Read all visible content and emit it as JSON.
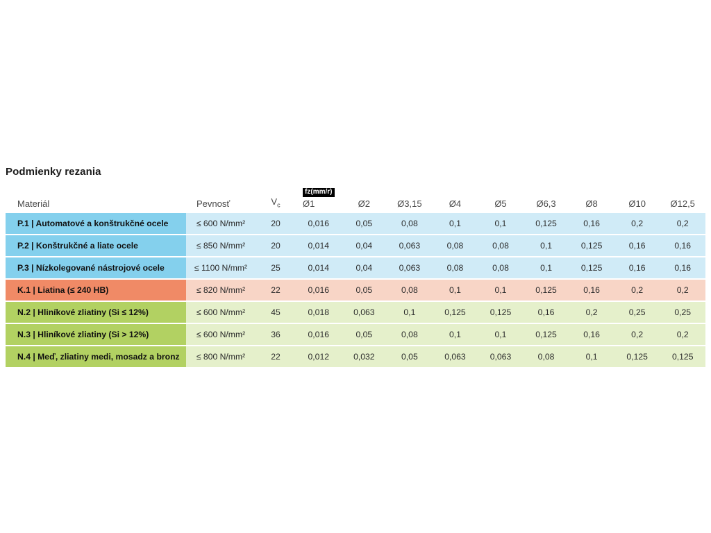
{
  "page": {
    "title": "Podmienky rezania"
  },
  "table": {
    "headers": {
      "material": "Materiál",
      "strength": "Pevnosť",
      "vc_main": "V",
      "vc_sub": "c",
      "fz_badge": "fz(mm/r)",
      "diameters": [
        "Ø1",
        "Ø2",
        "Ø3,15",
        "Ø4",
        "Ø5",
        "Ø6,3",
        "Ø8",
        "Ø10",
        "Ø12,5"
      ]
    },
    "group_colors": {
      "P": {
        "cell": "#84d0ed",
        "row": "#d0ebf7"
      },
      "K": {
        "cell": "#f08a66",
        "row": "#f8d5c6"
      },
      "N": {
        "cell": "#b2d162",
        "row": "#e5f0cb"
      }
    },
    "badge_colors": {
      "background": "#000000",
      "text": "#ffffff"
    },
    "rows": [
      {
        "group": "P",
        "material": "P.1 | Automatové a konštrukčné ocele",
        "strength": "≤ 600 N/mm²",
        "vc": "20",
        "values": [
          "0,016",
          "0,05",
          "0,08",
          "0,1",
          "0,1",
          "0,125",
          "0,16",
          "0,2",
          "0,2"
        ]
      },
      {
        "group": "P",
        "material": "P.2 | Konštrukčné a liate ocele",
        "strength": "≤ 850 N/mm²",
        "vc": "20",
        "values": [
          "0,014",
          "0,04",
          "0,063",
          "0,08",
          "0,08",
          "0,1",
          "0,125",
          "0,16",
          "0,16"
        ]
      },
      {
        "group": "P",
        "material": "P.3 | Nízkolegované nástrojové ocele",
        "strength": "≤ 1100 N/mm²",
        "vc": "25",
        "values": [
          "0,014",
          "0,04",
          "0,063",
          "0,08",
          "0,08",
          "0,1",
          "0,125",
          "0,16",
          "0,16"
        ]
      },
      {
        "group": "K",
        "material": "K.1 | Liatina (≤ 240 HB)",
        "strength": "≤ 820 N/mm²",
        "vc": "22",
        "values": [
          "0,016",
          "0,05",
          "0,08",
          "0,1",
          "0,1",
          "0,125",
          "0,16",
          "0,2",
          "0,2"
        ]
      },
      {
        "group": "N",
        "material": "N.2 | Hliníkové zliatiny (Si ≤ 12%)",
        "strength": "≤ 600 N/mm²",
        "vc": "45",
        "values": [
          "0,018",
          "0,063",
          "0,1",
          "0,125",
          "0,125",
          "0,16",
          "0,2",
          "0,25",
          "0,25"
        ]
      },
      {
        "group": "N",
        "material": "N.3 | Hliníkové zliatiny (Si > 12%)",
        "strength": "≤ 600 N/mm²",
        "vc": "36",
        "values": [
          "0,016",
          "0,05",
          "0,08",
          "0,1",
          "0,1",
          "0,125",
          "0,16",
          "0,2",
          "0,2"
        ]
      },
      {
        "group": "N",
        "material": "N.4 | Meď, zliatiny medi, mosadz a bronz",
        "strength": "≤ 800 N/mm²",
        "vc": "22",
        "values": [
          "0,012",
          "0,032",
          "0,05",
          "0,063",
          "0,063",
          "0,08",
          "0,1",
          "0,125",
          "0,125"
        ]
      }
    ]
  }
}
